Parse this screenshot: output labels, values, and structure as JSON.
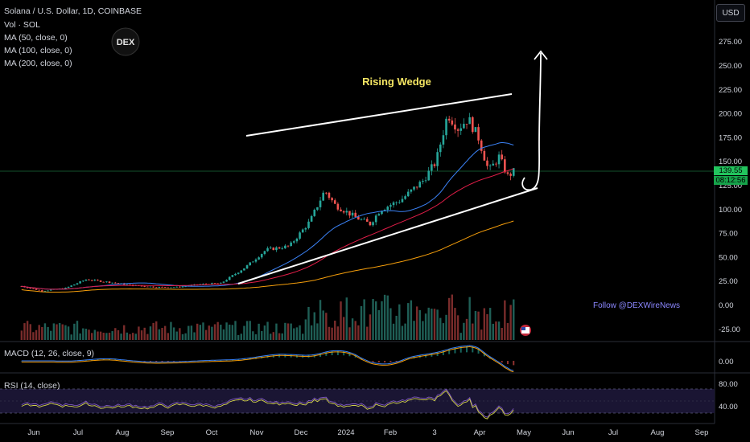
{
  "header": {
    "title": "Solana / U.S. Dollar, 1D, COINBASE",
    "indicators": [
      "Vol · SOL",
      "MA (50, close, 0)",
      "MA (100, close, 0)",
      "MA (200, close, 0)"
    ],
    "logo_text": "DEX",
    "currency_button": "USD"
  },
  "annotations": {
    "pattern_label": "Rising Wedge",
    "follow_text": "Follow @DEXWireNews"
  },
  "price_tag": {
    "price": "139.55",
    "countdown": "08:12:56"
  },
  "sub_panels": {
    "macd_label": "MACD (12, 26, close, 9)",
    "rsi_label": "RSI (14, close)"
  },
  "chart_data": {
    "type": "candlestick",
    "x_tick_labels": [
      "Jun",
      "Jul",
      "Aug",
      "Sep",
      "Oct",
      "Nov",
      "Dec",
      "2024",
      "Feb",
      "3",
      "Apr",
      "May",
      "Jun",
      "Jul",
      "Aug",
      "Sep"
    ],
    "y_tick_labels": [
      "275.00",
      "250.00",
      "225.00",
      "200.00",
      "175.00",
      "150.00",
      "125.00",
      "100.00",
      "75.00",
      "50.00",
      "25.00",
      "0.00",
      "-25.00"
    ],
    "ylim": [
      -35,
      300
    ],
    "macd_tick_labels": [
      "0.00"
    ],
    "rsi_tick_labels": [
      "80.00",
      "40.00"
    ],
    "close_series": [
      {
        "date": "2023-06-01",
        "close": 20
      },
      {
        "date": "2023-06-15",
        "close": 15
      },
      {
        "date": "2023-07-01",
        "close": 18
      },
      {
        "date": "2023-07-15",
        "close": 27
      },
      {
        "date": "2023-08-01",
        "close": 24
      },
      {
        "date": "2023-08-15",
        "close": 21
      },
      {
        "date": "2023-09-01",
        "close": 19
      },
      {
        "date": "2023-09-15",
        "close": 19
      },
      {
        "date": "2023-10-01",
        "close": 22
      },
      {
        "date": "2023-10-15",
        "close": 23
      },
      {
        "date": "2023-11-01",
        "close": 40
      },
      {
        "date": "2023-11-15",
        "close": 58
      },
      {
        "date": "2023-12-01",
        "close": 62
      },
      {
        "date": "2023-12-15",
        "close": 88
      },
      {
        "date": "2023-12-25",
        "close": 120
      },
      {
        "date": "2024-01-01",
        "close": 105
      },
      {
        "date": "2024-01-15",
        "close": 92
      },
      {
        "date": "2024-01-25",
        "close": 85
      },
      {
        "date": "2024-02-01",
        "close": 100
      },
      {
        "date": "2024-02-15",
        "close": 110
      },
      {
        "date": "2024-03-01",
        "close": 130
      },
      {
        "date": "2024-03-10",
        "close": 150
      },
      {
        "date": "2024-03-18",
        "close": 200
      },
      {
        "date": "2024-03-25",
        "close": 185
      },
      {
        "date": "2024-04-01",
        "close": 195
      },
      {
        "date": "2024-04-08",
        "close": 175
      },
      {
        "date": "2024-04-15",
        "close": 140
      },
      {
        "date": "2024-04-22",
        "close": 155
      },
      {
        "date": "2024-04-28",
        "close": 135
      },
      {
        "date": "2024-05-02",
        "close": 139.55
      }
    ],
    "ma_lines": [
      {
        "name": "MA (50, close, 0)",
        "color": "#3b82f6"
      },
      {
        "name": "MA (100, close, 0)",
        "color": "#e11d48"
      },
      {
        "name": "MA (200, close, 0)",
        "color": "#f59e0b"
      }
    ],
    "grid": false,
    "colors": {
      "up": "#26a69a",
      "down": "#ef5350",
      "wedge": "#ffffff",
      "label": "#f5e663",
      "follow": "#8b87ff"
    }
  }
}
